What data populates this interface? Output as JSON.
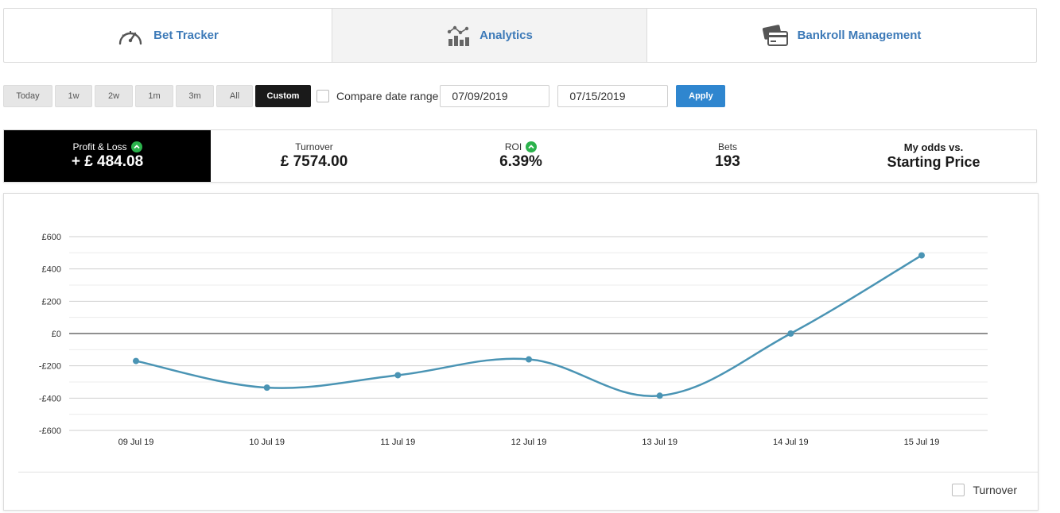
{
  "tabs": [
    {
      "label": "Bet Tracker",
      "icon": "speedometer-icon"
    },
    {
      "label": "Analytics",
      "icon": "analytics-chart-icon",
      "active": true
    },
    {
      "label": "Bankroll Management",
      "icon": "cards-icon"
    }
  ],
  "filters": {
    "ranges": [
      "Today",
      "1w",
      "2w",
      "1m",
      "3m",
      "All",
      "Custom"
    ],
    "active": "Custom",
    "compare_label": "Compare date range",
    "compare_checked": false,
    "date_from": "07/09/2019",
    "date_to": "07/15/2019",
    "apply_label": "Apply"
  },
  "stats": {
    "profit_loss": {
      "label": "Profit & Loss",
      "value": "+ £ 484.08",
      "trend": "up"
    },
    "turnover": {
      "label": "Turnover",
      "value": "£ 7574.00"
    },
    "roi": {
      "label": "ROI",
      "value": "6.39%",
      "trend": "up"
    },
    "bets": {
      "label": "Bets",
      "value": "193"
    },
    "odds": {
      "label": "My odds vs.",
      "value": "Starting Price"
    }
  },
  "colors": {
    "accent_blue": "#2f86cf",
    "tab_text": "#3d7ab8",
    "line": "#4a94b4",
    "up_green": "#2bb24c"
  },
  "chart_data": {
    "type": "line",
    "x": [
      "09 Jul 19",
      "10 Jul 19",
      "11 Jul 19",
      "12 Jul 19",
      "13 Jul 19",
      "14 Jul 19",
      "15 Jul 19"
    ],
    "series": [
      {
        "values": [
          -170,
          -335,
          -258,
          -160,
          -385,
          0,
          484.08
        ]
      }
    ],
    "ylim": [
      -600,
      600
    ],
    "yticks": [
      600,
      400,
      200,
      0,
      -200,
      -400,
      -600
    ],
    "ytick_labels": [
      "£600",
      "£400",
      "£200",
      "£0",
      "-£200",
      "-£400",
      "-£600"
    ],
    "grid": true,
    "legend": [
      {
        "label": "Turnover",
        "checked": false
      }
    ]
  }
}
